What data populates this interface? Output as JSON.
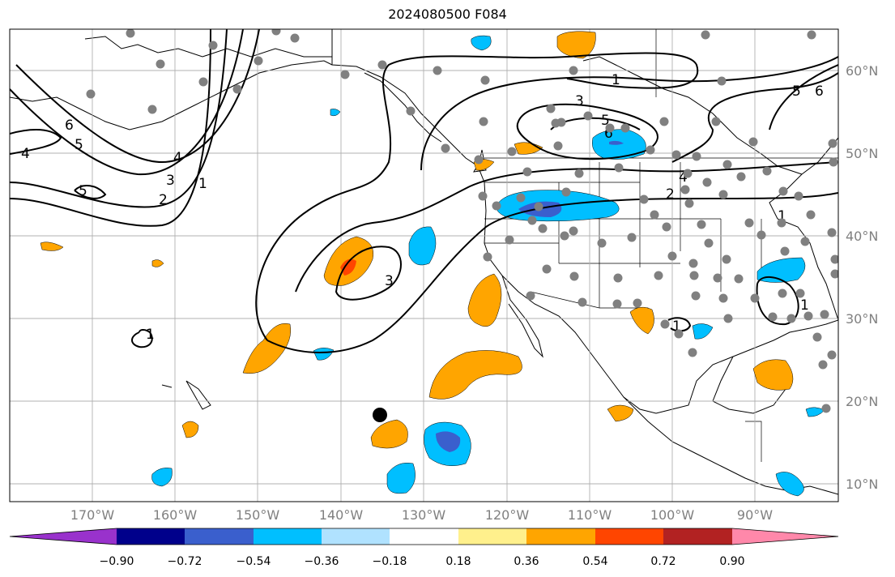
{
  "title": "2024080500 F084",
  "latitude_labels": [
    "60°N",
    "50°N",
    "40°N",
    "30°N",
    "20°N",
    "10°N"
  ],
  "longitude_labels": [
    "170°W",
    "160°W",
    "150°W",
    "140°W",
    "130°W",
    "120°W",
    "110°W",
    "100°W",
    "90°W"
  ],
  "colorbar": {
    "ticks": [
      "−0.90",
      "−0.72",
      "−0.54",
      "−0.36",
      "−0.18",
      "0.18",
      "0.36",
      "0.54",
      "0.72",
      "0.90"
    ],
    "colors": [
      "#9932cc",
      "#00008b",
      "#3a5fcd",
      "#00bfff",
      "#b0e2ff",
      "#ffffff",
      "#fff08c",
      "#ffa500",
      "#ff4500",
      "#b22222",
      "#ff88aa"
    ]
  },
  "contour_labels": [
    "1",
    "2",
    "3",
    "4",
    "5",
    "6"
  ],
  "marker_color": "#808080",
  "storm_marker_color": "#000000"
}
